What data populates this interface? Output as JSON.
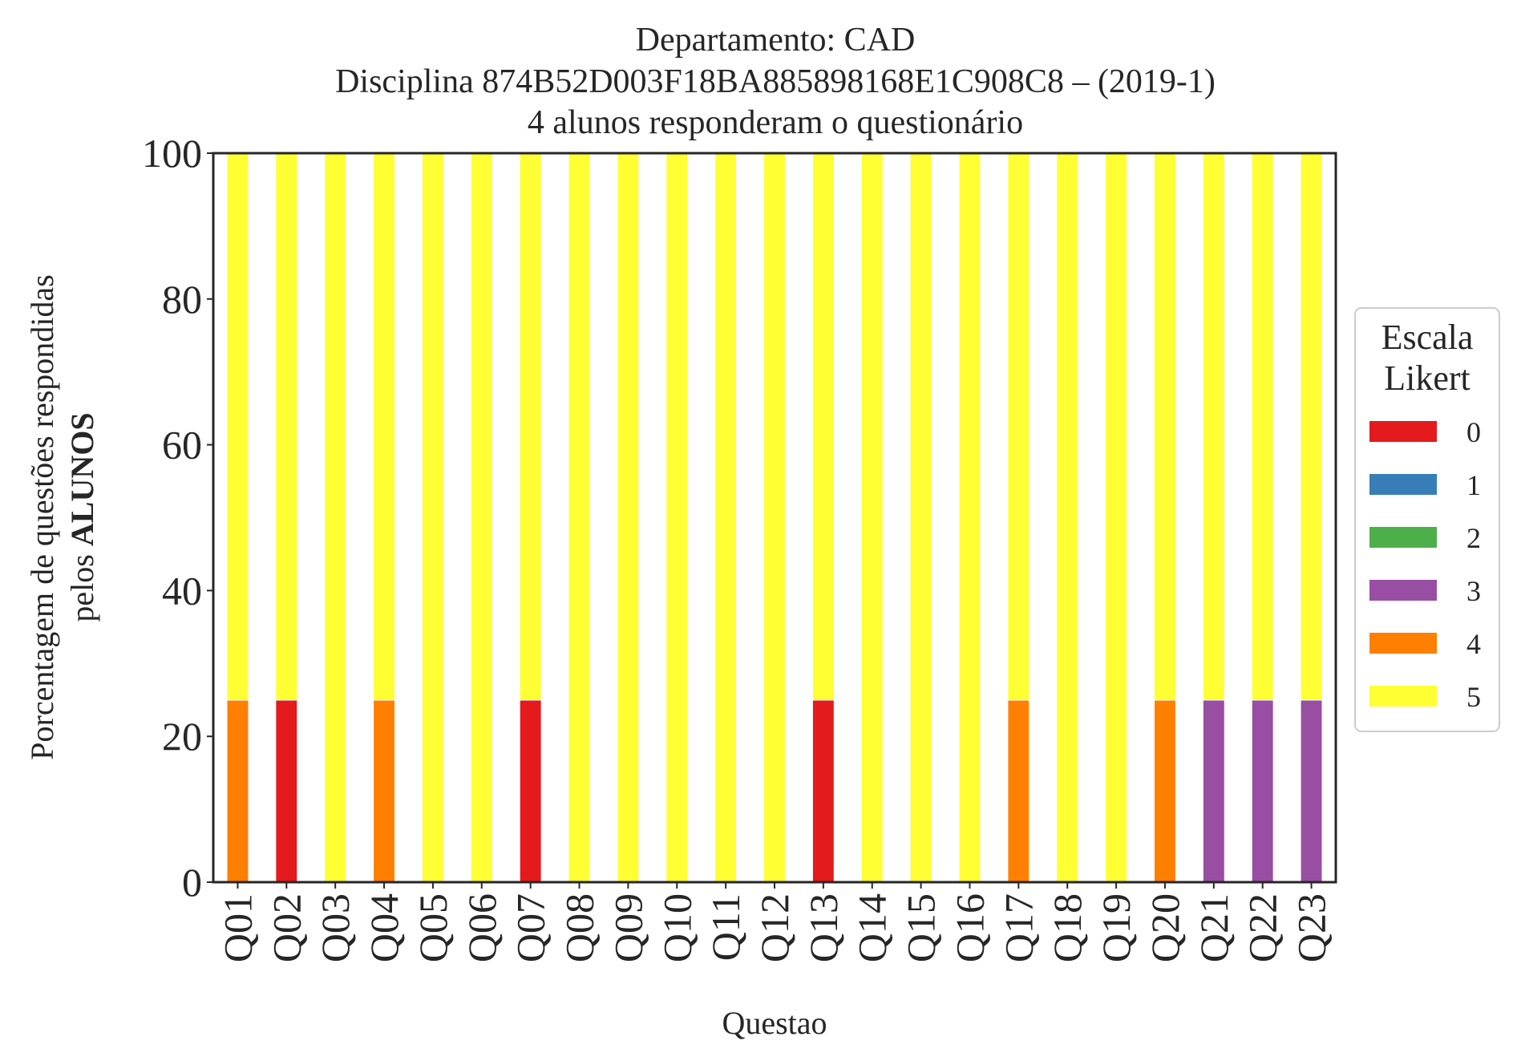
{
  "chart_data": {
    "type": "bar",
    "stacked": true,
    "title_lines": [
      "Departamento: CAD",
      "Disciplina 874B52D003F18BA885898168E1C908C8 – (2019-1)",
      "4 alunos responderam o questionário"
    ],
    "xlabel": "Questao",
    "ylabel_line1": "Porcentagem de questões respondidas",
    "ylabel_line2_prefix": "pelos ",
    "ylabel_line2_bold": "ALUNOS",
    "ylim": [
      0,
      100
    ],
    "yticks": [
      "0",
      "20",
      "40",
      "60",
      "80",
      "100"
    ],
    "grid": false,
    "legend": {
      "title_lines": [
        "Escala",
        "Likert"
      ],
      "placement": "center-right outside"
    },
    "categories": [
      "Q01",
      "Q02",
      "Q03",
      "Q04",
      "Q05",
      "Q06",
      "Q07",
      "Q08",
      "Q09",
      "Q10",
      "Q11",
      "Q12",
      "Q13",
      "Q14",
      "Q15",
      "Q16",
      "Q17",
      "Q18",
      "Q19",
      "Q20",
      "Q21",
      "Q22",
      "Q23"
    ],
    "series": [
      {
        "name": "0",
        "color": "#e41a1c",
        "values": [
          0,
          25,
          0,
          0,
          0,
          0,
          25,
          0,
          0,
          0,
          0,
          0,
          25,
          0,
          0,
          0,
          0,
          0,
          0,
          0,
          0,
          0,
          0
        ]
      },
      {
        "name": "1",
        "color": "#377eb8",
        "values": [
          0,
          0,
          0,
          0,
          0,
          0,
          0,
          0,
          0,
          0,
          0,
          0,
          0,
          0,
          0,
          0,
          0,
          0,
          0,
          0,
          0,
          0,
          0
        ]
      },
      {
        "name": "2",
        "color": "#4daf4a",
        "values": [
          0,
          0,
          0,
          0,
          0,
          0,
          0,
          0,
          0,
          0,
          0,
          0,
          0,
          0,
          0,
          0,
          0,
          0,
          0,
          0,
          0,
          0,
          0
        ]
      },
      {
        "name": "3",
        "color": "#984ea3",
        "values": [
          0,
          0,
          0,
          0,
          0,
          0,
          0,
          0,
          0,
          0,
          0,
          0,
          0,
          0,
          0,
          0,
          0,
          0,
          0,
          0,
          25,
          25,
          25
        ]
      },
      {
        "name": "4",
        "color": "#ff7f00",
        "values": [
          25,
          0,
          0,
          25,
          0,
          0,
          0,
          0,
          0,
          0,
          0,
          0,
          0,
          0,
          0,
          0,
          25,
          0,
          0,
          25,
          0,
          0,
          0
        ]
      },
      {
        "name": "5",
        "color": "#ffff33",
        "values": [
          75,
          75,
          100,
          75,
          100,
          100,
          75,
          100,
          100,
          100,
          100,
          100,
          75,
          100,
          100,
          100,
          75,
          100,
          100,
          75,
          75,
          75,
          75
        ]
      }
    ]
  }
}
